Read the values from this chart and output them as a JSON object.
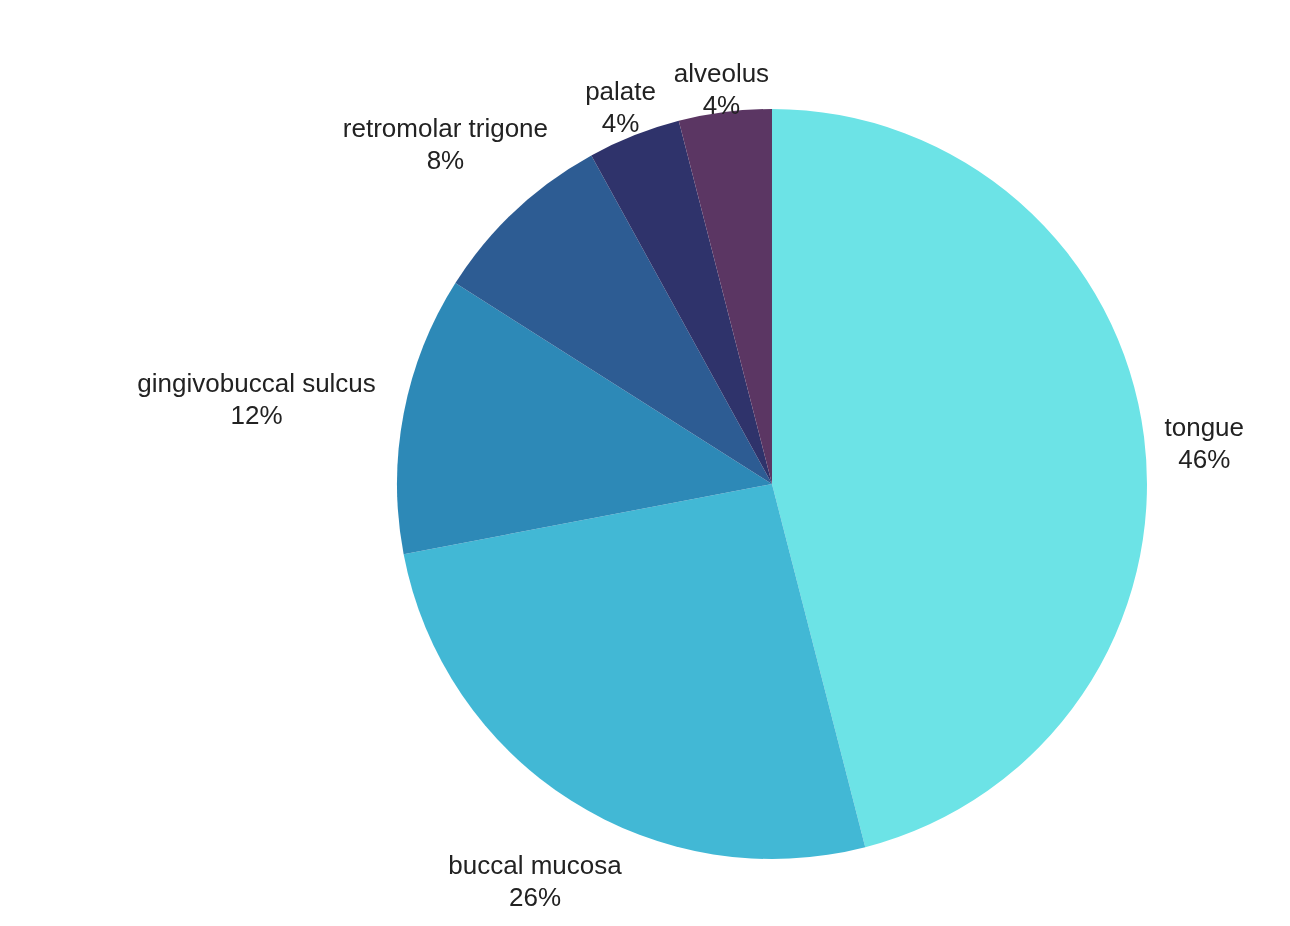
{
  "chart_data": {
    "type": "pie",
    "categories": [
      "tongue",
      "buccal mucosa",
      "gingivobuccal sulcus",
      "retromolar trigone",
      "palate",
      "alveolus"
    ],
    "values": [
      46,
      26,
      12,
      8,
      4,
      4
    ],
    "value_labels": [
      "46%",
      "26%",
      "12%",
      "8%",
      "4%",
      "4%"
    ],
    "colors": [
      "#6ce3e6",
      "#42b8d5",
      "#2d89b7",
      "#2d5c93",
      "#2f336b",
      "#5b3663"
    ],
    "legend": false
  }
}
